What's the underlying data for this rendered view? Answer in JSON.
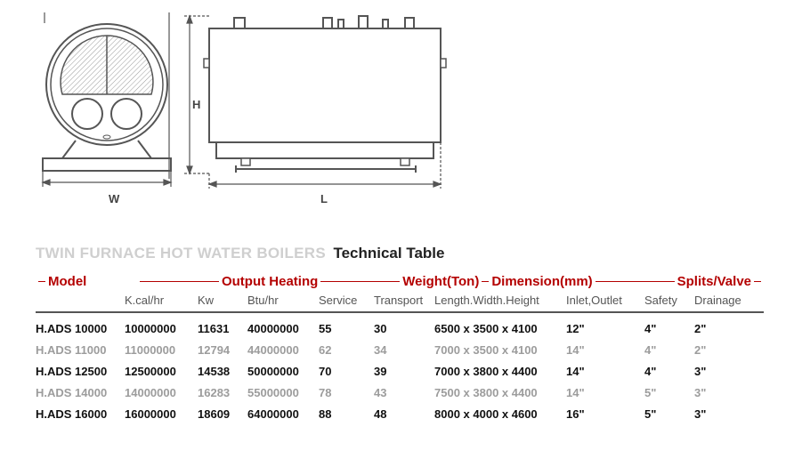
{
  "diagram": {
    "labels": {
      "w": "W",
      "h": "H",
      "l": "L"
    },
    "stroke": "#555555",
    "hatch": "#888888",
    "bg": "#ffffff"
  },
  "title": {
    "gray": "TWIN FURNACE HOT WATER BOILERS",
    "black": "Technical Table"
  },
  "groups": {
    "model": "Model",
    "output": "Output Heating",
    "weight": "Weight(Ton)",
    "dimension": "Dimension(mm)",
    "splits": "Splits/Valve"
  },
  "subheaders": {
    "kcal": "K.cal/hr",
    "kw": "Kw",
    "btu": "Btu/hr",
    "service": "Service",
    "transport": "Transport",
    "lwh": "Length.Width.Height",
    "inout": "Inlet,Outlet",
    "safety": "Safety",
    "drainage": "Drainage"
  },
  "rows": [
    {
      "style": "bold",
      "model": "H.ADS 10000",
      "kcal": "10000000",
      "kw": "11631",
      "btu": "40000000",
      "service": "55",
      "transport": "30",
      "dim": "6500 x 3500 x 4100",
      "inout": "12\"",
      "safety": "4\"",
      "drain": "2\""
    },
    {
      "style": "gray",
      "model": "H.ADS 11000",
      "kcal": "11000000",
      "kw": "12794",
      "btu": "44000000",
      "service": "62",
      "transport": "34",
      "dim": "7000 x 3500 x 4100",
      "inout": "14\"",
      "safety": "4\"",
      "drain": "2\""
    },
    {
      "style": "bold",
      "model": "H.ADS 12500",
      "kcal": "12500000",
      "kw": "14538",
      "btu": "50000000",
      "service": "70",
      "transport": "39",
      "dim": "7000 x 3800 x 4400",
      "inout": "14\"",
      "safety": "4\"",
      "drain": "3\""
    },
    {
      "style": "gray",
      "model": "H.ADS 14000",
      "kcal": "14000000",
      "kw": "16283",
      "btu": "55000000",
      "service": "78",
      "transport": "43",
      "dim": "7500 x 3800 x 4400",
      "inout": "14\"",
      "safety": "5\"",
      "drain": "3\""
    },
    {
      "style": "bold",
      "model": "H.ADS 16000",
      "kcal": "16000000",
      "kw": "18609",
      "btu": "64000000",
      "service": "88",
      "transport": "48",
      "dim": "8000 x 4000 x 4600",
      "inout": "16\"",
      "safety": "5\"",
      "drain": "3\""
    }
  ],
  "colors": {
    "accent": "#b40000",
    "text": "#222222",
    "gray_text": "#9c9c9c",
    "title_gray": "#cfcfcf"
  }
}
